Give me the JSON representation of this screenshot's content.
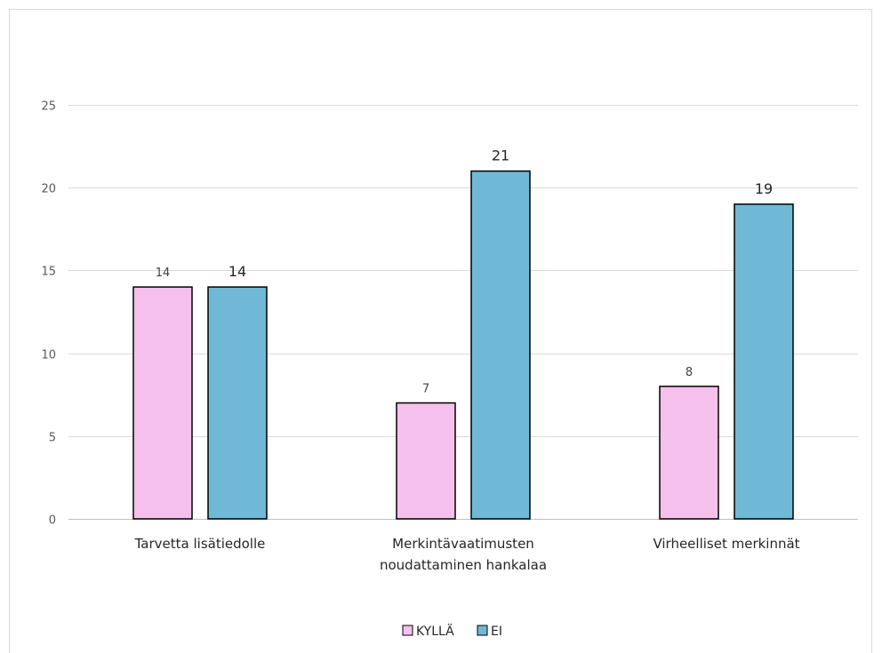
{
  "chart_data": {
    "type": "bar",
    "title": "",
    "xlabel": "",
    "ylabel": "",
    "categories": [
      [
        "Tarvetta lisätiedolle"
      ],
      [
        "Merkintävaatimusten",
        "noudattaminen hankalaa"
      ],
      [
        "Virheelliset merkinnät"
      ]
    ],
    "series": [
      {
        "name": "KYLLÄ",
        "color": "#f5c1ec",
        "values": [
          14,
          7,
          8
        ]
      },
      {
        "name": "EI",
        "color": "#6fb9d7",
        "values": [
          14,
          21,
          19
        ]
      }
    ],
    "ylim": [
      0,
      25
    ],
    "yticks": [
      "0",
      "5",
      "10",
      "15",
      "20",
      "25"
    ],
    "grid": true,
    "legend": "bottom-center"
  }
}
